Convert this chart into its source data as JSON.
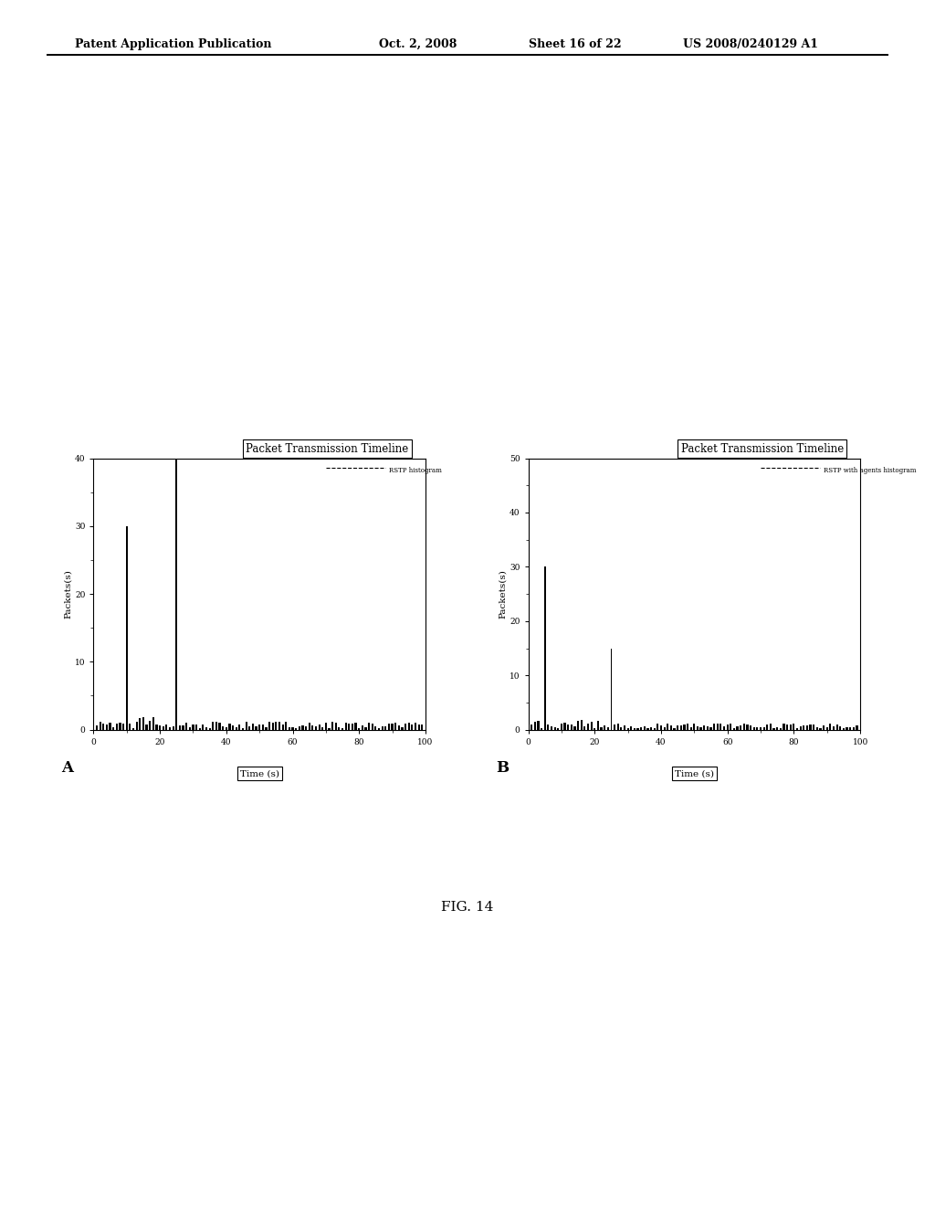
{
  "header_left": "Patent Application Publication",
  "header_date": "Oct. 2, 2008",
  "header_sheet": "Sheet 16 of 22",
  "header_patent": "US 2008/0240129 A1",
  "fig_label": "FIG. 14",
  "chart_A": {
    "label": "A",
    "title": "Packet Transmission Timeline",
    "xlabel": "Time (s)",
    "ylabel": "Packets(s)",
    "legend": "RSTP histogram",
    "xlim": [
      0,
      100
    ],
    "ylim": [
      0,
      40
    ],
    "xticks": [
      0,
      20,
      40,
      60,
      80,
      100
    ],
    "yticks": [
      0,
      10,
      20,
      30,
      40
    ],
    "spike1_x": 10,
    "spike1_y": 30,
    "spike2_x": 25,
    "spike2_y": 40
  },
  "chart_B": {
    "label": "B",
    "title": "Packet Transmission Timeline",
    "xlabel": "Time (s)",
    "ylabel": "Packets(s)",
    "legend": "RSTP with agents histogram",
    "xlim": [
      0,
      100
    ],
    "ylim": [
      0,
      50
    ],
    "xticks": [
      0,
      20,
      40,
      60,
      80,
      100
    ],
    "yticks": [
      0,
      10,
      20,
      30,
      40,
      50
    ],
    "spike1_x": 5,
    "spike1_y": 30,
    "spike2_x": 25,
    "spike2_y": 15
  },
  "background_color": "#ffffff",
  "bar_color": "#000000",
  "bar_width": 0.6,
  "seed_A": 42,
  "seed_B": 99
}
